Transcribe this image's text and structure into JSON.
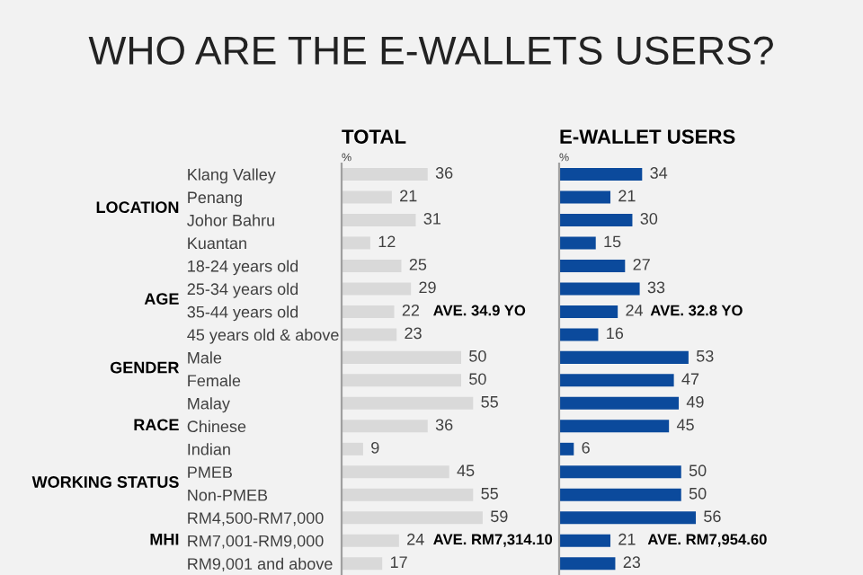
{
  "chart_data": [
    {
      "type": "bar",
      "orientation": "horizontal",
      "title": "TOTAL",
      "xlabel": "%",
      "tick_labels": "y",
      "data_labels": true,
      "color": "#d9d9d9",
      "categories": [
        "Klang Valley",
        "Penang",
        "Johor Bahru",
        "Kuantan",
        "18-24 years old",
        "25-34 years old",
        "35-44 years old",
        "45 years old & above",
        "Male",
        "Female",
        "Malay",
        "Chinese",
        "Indian",
        "PMEB",
        "Non-PMEB",
        "RM4,500-RM7,000",
        "RM7,001-RM9,000",
        "RM9,001 and above"
      ],
      "values": [
        36,
        21,
        31,
        12,
        25,
        29,
        22,
        23,
        50,
        50,
        55,
        36,
        9,
        45,
        55,
        59,
        24,
        17
      ],
      "annotations": [
        "WHO ARE THE E-WALLETS USERS?",
        "LOCATION",
        "AGE",
        "GENDER",
        "RACE",
        "WORKING STATUS",
        "MHI",
        "AVE. 34.9 YO",
        "AVE. RM7,314.10"
      ]
    },
    {
      "type": "bar",
      "orientation": "horizontal",
      "title": "E-WALLET USERS",
      "xlabel": "%",
      "tick_labels": false,
      "data_labels": true,
      "color": "#0b4a9c",
      "categories": [
        null,
        null,
        null,
        null,
        null,
        null,
        null,
        null,
        null,
        null,
        null,
        null,
        null,
        null,
        null,
        null,
        null,
        null
      ],
      "values": [
        34,
        21,
        30,
        15,
        27,
        33,
        24,
        16,
        53,
        47,
        49,
        45,
        6,
        50,
        50,
        56,
        21,
        23
      ],
      "annotations": [
        "AVE. 32.8 YO",
        "AVE. RM7,954.60"
      ]
    }
  ]
}
